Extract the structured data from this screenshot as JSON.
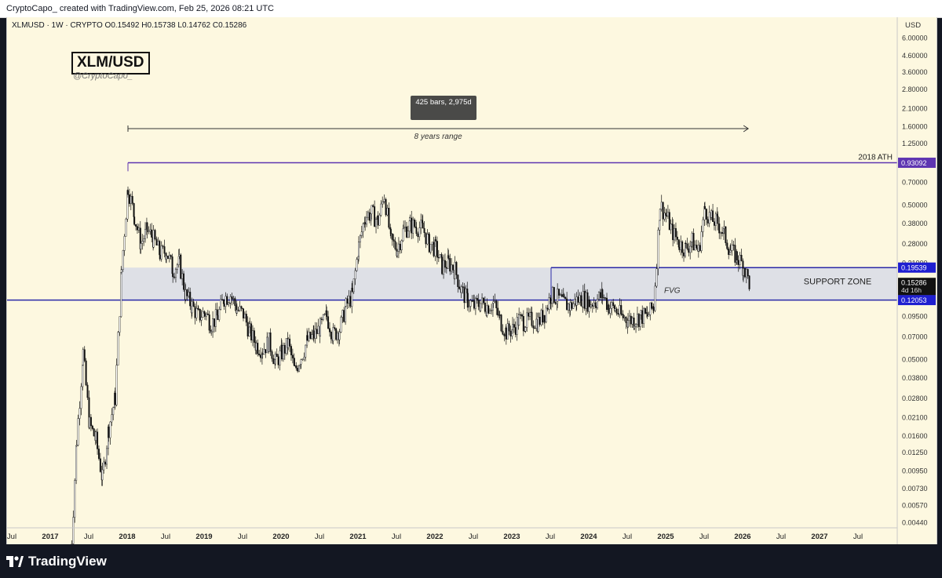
{
  "header": {
    "attribution": "CryptoCapo_ created with TradingView.com, Feb 25, 2026 08:21 UTC"
  },
  "legend": {
    "symbol_info": "XLMUSD · 1W · CRYPTO O0.15492 H0.15738 L0.14762 C0.15286"
  },
  "watermark": {
    "title": "XLM/USD",
    "handle": "@CryptoCapo_"
  },
  "footer": {
    "brand": "TradingView"
  },
  "chart_data": {
    "type": "candlestick",
    "scale": "log",
    "currency_label": "USD",
    "y_ticks": [
      "6.00000",
      "4.60000",
      "3.60000",
      "2.80000",
      "2.10000",
      "1.60000",
      "1.25000",
      "0.70000",
      "0.50000",
      "0.38000",
      "0.28000",
      "0.21000",
      "0.09500",
      "0.07000",
      "0.05000",
      "0.03800",
      "0.02800",
      "0.02100",
      "0.01600",
      "0.01250",
      "0.00950",
      "0.00730",
      "0.00570",
      "0.00440"
    ],
    "x_ticks": [
      "Jul",
      "2017",
      "Jul",
      "2018",
      "Jul",
      "2019",
      "Jul",
      "2020",
      "Jul",
      "2021",
      "Jul",
      "2022",
      "Jul",
      "2023",
      "Jul",
      "2024",
      "Jul",
      "2025",
      "Jul",
      "2026",
      "Jul",
      "2027",
      "Jul"
    ],
    "price_labels": [
      {
        "value": 0.93092,
        "text": "0.93092",
        "color": "#5e35b1"
      },
      {
        "value": 0.19539,
        "text": "0.19539",
        "color": "#1f1fd0"
      },
      {
        "value": 0.12053,
        "text": "0.12053",
        "color": "#1f1fd0"
      }
    ],
    "last_price": {
      "value": 0.15286,
      "text": "0.15286",
      "countdown": "4d 16h"
    },
    "lines": [
      {
        "name": "ath-line",
        "price": 0.93092,
        "x_from": "2018-01",
        "x_to": "end",
        "label": "2018 ATH",
        "color": "#5e35b1"
      },
      {
        "name": "support-line",
        "price": 0.12053,
        "x_from": "start",
        "x_to": "end",
        "color": "#2a2aa8"
      }
    ],
    "zones": [
      {
        "name": "support-zone",
        "from": 0.12053,
        "to": 0.19539,
        "x_from": "2017-12",
        "x_to": "end",
        "label": "SUPPORT ZONE",
        "color": "#d8dce6"
      }
    ],
    "annotations": {
      "range_measure": {
        "label": "8 years range",
        "bars_text": "425 bars, 2,975d"
      },
      "fvg": "FVG",
      "support_zone": "SUPPORT ZONE",
      "ath": "2018 ATH"
    },
    "series": [
      {
        "name": "XLMUSD",
        "points": [
          [
            "2017-04",
            0.0022
          ],
          [
            "2017-05",
            0.015
          ],
          [
            "2017-06",
            0.055
          ],
          [
            "2017-07",
            0.019
          ],
          [
            "2017-08",
            0.015
          ],
          [
            "2017-09",
            0.0085
          ],
          [
            "2017-10",
            0.018
          ],
          [
            "2017-11",
            0.028
          ],
          [
            "2017-12",
            0.19
          ],
          [
            "2018-01",
            0.65
          ],
          [
            "2018-02",
            0.42
          ],
          [
            "2018-03",
            0.28
          ],
          [
            "2018-04",
            0.34
          ],
          [
            "2018-05",
            0.3
          ],
          [
            "2018-06",
            0.24
          ],
          [
            "2018-07",
            0.25
          ],
          [
            "2018-08",
            0.19
          ],
          [
            "2018-09",
            0.21
          ],
          [
            "2018-10",
            0.13
          ],
          [
            "2018-11",
            0.11
          ],
          [
            "2018-12",
            0.095
          ],
          [
            "2019-01",
            0.1
          ],
          [
            "2019-02",
            0.085
          ],
          [
            "2019-03",
            0.095
          ],
          [
            "2019-04",
            0.125
          ],
          [
            "2019-05",
            0.13
          ],
          [
            "2019-06",
            0.105
          ],
          [
            "2019-07",
            0.098
          ],
          [
            "2019-08",
            0.075
          ],
          [
            "2019-09",
            0.062
          ],
          [
            "2019-10",
            0.058
          ],
          [
            "2019-11",
            0.065
          ],
          [
            "2019-12",
            0.048
          ],
          [
            "2020-01",
            0.055
          ],
          [
            "2020-02",
            0.063
          ],
          [
            "2020-03",
            0.042
          ],
          [
            "2020-04",
            0.052
          ],
          [
            "2020-05",
            0.066
          ],
          [
            "2020-06",
            0.071
          ],
          [
            "2020-07",
            0.08
          ],
          [
            "2020-08",
            0.095
          ],
          [
            "2020-09",
            0.072
          ],
          [
            "2020-10",
            0.078
          ],
          [
            "2020-11",
            0.11
          ],
          [
            "2020-12",
            0.13
          ],
          [
            "2021-01",
            0.27
          ],
          [
            "2021-02",
            0.42
          ],
          [
            "2021-03",
            0.44
          ],
          [
            "2021-04",
            0.39
          ],
          [
            "2021-05",
            0.58
          ],
          [
            "2021-06",
            0.29
          ],
          [
            "2021-07",
            0.26
          ],
          [
            "2021-08",
            0.34
          ],
          [
            "2021-09",
            0.37
          ],
          [
            "2021-10",
            0.36
          ],
          [
            "2021-11",
            0.35
          ],
          [
            "2021-12",
            0.28
          ],
          [
            "2022-01",
            0.26
          ],
          [
            "2022-02",
            0.2
          ],
          [
            "2022-03",
            0.21
          ],
          [
            "2022-04",
            0.19
          ],
          [
            "2022-05",
            0.14
          ],
          [
            "2022-06",
            0.12
          ],
          [
            "2022-07",
            0.11
          ],
          [
            "2022-08",
            0.115
          ],
          [
            "2022-09",
            0.11
          ],
          [
            "2022-10",
            0.115
          ],
          [
            "2022-11",
            0.09
          ],
          [
            "2022-12",
            0.075
          ],
          [
            "2023-01",
            0.078
          ],
          [
            "2023-02",
            0.09
          ],
          [
            "2023-03",
            0.087
          ],
          [
            "2023-04",
            0.09
          ],
          [
            "2023-05",
            0.087
          ],
          [
            "2023-06",
            0.1
          ],
          [
            "2023-07",
            0.13
          ],
          [
            "2023-08",
            0.125
          ],
          [
            "2023-09",
            0.115
          ],
          [
            "2023-10",
            0.11
          ],
          [
            "2023-11",
            0.12
          ],
          [
            "2023-12",
            0.125
          ],
          [
            "2024-01",
            0.115
          ],
          [
            "2024-02",
            0.12
          ],
          [
            "2024-03",
            0.13
          ],
          [
            "2024-04",
            0.11
          ],
          [
            "2024-05",
            0.105
          ],
          [
            "2024-06",
            0.095
          ],
          [
            "2024-07",
            0.09
          ],
          [
            "2024-08",
            0.09
          ],
          [
            "2024-09",
            0.095
          ],
          [
            "2024-10",
            0.095
          ],
          [
            "2024-11",
            0.11
          ],
          [
            "2024-12",
            0.5
          ],
          [
            "2025-01",
            0.42
          ],
          [
            "2025-02",
            0.33
          ],
          [
            "2025-03",
            0.28
          ],
          [
            "2025-04",
            0.26
          ],
          [
            "2025-05",
            0.29
          ],
          [
            "2025-06",
            0.25
          ],
          [
            "2025-07",
            0.47
          ],
          [
            "2025-08",
            0.4
          ],
          [
            "2025-09",
            0.38
          ],
          [
            "2025-10",
            0.32
          ],
          [
            "2025-11",
            0.25
          ],
          [
            "2025-12",
            0.23
          ],
          [
            "2026-01",
            0.2
          ],
          [
            "2026-02",
            0.153
          ]
        ]
      }
    ]
  }
}
